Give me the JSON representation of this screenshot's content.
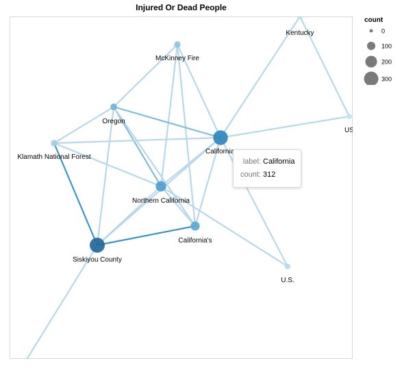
{
  "chart_data": {
    "type": "network",
    "title": "Injured Or Dead People",
    "legend": {
      "title": "count",
      "values": [
        0,
        100,
        200,
        300
      ],
      "placement": "top-right"
    },
    "nodes": [
      {
        "id": "kentucky",
        "label": "Kentucky",
        "count": 5
      },
      {
        "id": "mckinney",
        "label": "McKinney Fire",
        "count": 60
      },
      {
        "id": "oregon",
        "label": "Oregon",
        "count": 65
      },
      {
        "id": "california",
        "label": "California",
        "count": 312
      },
      {
        "id": "klamath",
        "label": "Klamath National Forest",
        "count": 60
      },
      {
        "id": "us_right",
        "label": "US",
        "count": 10
      },
      {
        "id": "northern_ca",
        "label": "Northern California",
        "count": 160
      },
      {
        "id": "californias",
        "label": "California's",
        "count": 120
      },
      {
        "id": "siskiyou",
        "label": "Siskiyou County",
        "count": 330
      },
      {
        "id": "us_dot",
        "label": "U.S.",
        "count": 15
      },
      {
        "id": "bottom_offscreen",
        "label": "",
        "count": 0
      }
    ],
    "edges": [
      [
        "kentucky",
        "us_right",
        1
      ],
      [
        "kentucky",
        "california",
        1
      ],
      [
        "us_right",
        "california",
        1
      ],
      [
        "mckinney",
        "oregon",
        1
      ],
      [
        "mckinney",
        "california",
        1
      ],
      [
        "mckinney",
        "northern_ca",
        1
      ],
      [
        "mckinney",
        "californias",
        1
      ],
      [
        "oregon",
        "klamath",
        1
      ],
      [
        "oregon",
        "california",
        2
      ],
      [
        "oregon",
        "northern_ca",
        2
      ],
      [
        "oregon",
        "californias",
        1
      ],
      [
        "oregon",
        "siskiyou",
        1
      ],
      [
        "klamath",
        "california",
        1
      ],
      [
        "klamath",
        "northern_ca",
        1
      ],
      [
        "klamath",
        "siskiyou",
        3
      ],
      [
        "california",
        "northern_ca",
        1
      ],
      [
        "california",
        "siskiyou",
        1
      ],
      [
        "california",
        "us_dot",
        1
      ],
      [
        "california",
        "californias",
        1
      ],
      [
        "northern_ca",
        "siskiyou",
        1
      ],
      [
        "northern_ca",
        "us_dot",
        1
      ],
      [
        "northern_ca",
        "californias",
        1
      ],
      [
        "siskiyou",
        "californias",
        3
      ],
      [
        "siskiyou",
        "bottom_offscreen",
        1
      ]
    ],
    "tooltip": {
      "node": "california",
      "label_key": "label:",
      "label_value": "California",
      "count_key": "count:",
      "count_value": "312"
    }
  }
}
